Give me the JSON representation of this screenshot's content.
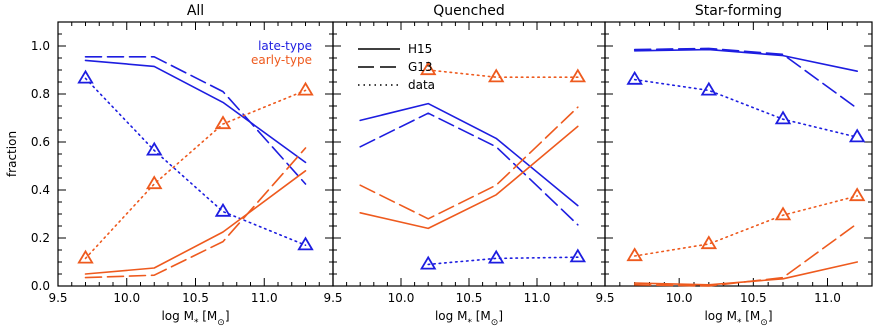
{
  "colors": {
    "late": "#1d1de0",
    "early": "#ee5a1e"
  },
  "legend": {
    "color_entries": [
      {
        "label": "late-type",
        "series_type": "late"
      },
      {
        "label": "early-type",
        "series_type": "early"
      }
    ],
    "style_entries": [
      {
        "label": "H15",
        "style": "solid"
      },
      {
        "label": "G13",
        "style": "dashed"
      },
      {
        "label": "data",
        "style": "dotted"
      }
    ]
  },
  "chart_data": [
    {
      "type": "line",
      "title": "All",
      "xlabel": "log M",
      "xlabel_sub": "*",
      "xlabel_unit_open": " [M",
      "xlabel_unit_sub": "⊙",
      "xlabel_unit_close": "]",
      "ylabel": "fraction",
      "xlim": [
        9.5,
        11.5
      ],
      "ylim": [
        0,
        1.1
      ],
      "xticks": [
        "9.5",
        "10.0",
        "10.5",
        "11.0"
      ],
      "yticks": [
        "0.0",
        "0.2",
        "0.4",
        "0.6",
        "0.8",
        "1.0"
      ],
      "series": [
        {
          "type": "late",
          "style": "solid",
          "x": [
            9.7,
            10.2,
            10.7,
            11.3
          ],
          "y": [
            0.94,
            0.915,
            0.765,
            0.515
          ]
        },
        {
          "type": "late",
          "style": "dashed",
          "x": [
            9.7,
            10.2,
            10.7,
            11.3
          ],
          "y": [
            0.955,
            0.955,
            0.81,
            0.425
          ]
        },
        {
          "type": "late",
          "style": "dotted",
          "markers": true,
          "x": [
            9.7,
            10.2,
            10.7,
            11.3
          ],
          "y": [
            0.865,
            0.565,
            0.31,
            0.17
          ]
        },
        {
          "type": "early",
          "style": "solid",
          "x": [
            9.7,
            10.2,
            10.7,
            11.3
          ],
          "y": [
            0.05,
            0.075,
            0.225,
            0.48
          ]
        },
        {
          "type": "early",
          "style": "dashed",
          "x": [
            9.7,
            10.2,
            10.7,
            11.3
          ],
          "y": [
            0.035,
            0.045,
            0.185,
            0.575
          ]
        },
        {
          "type": "early",
          "style": "dotted",
          "markers": true,
          "x": [
            9.7,
            10.2,
            10.7,
            11.3
          ],
          "y": [
            0.115,
            0.425,
            0.675,
            0.815
          ]
        }
      ]
    },
    {
      "type": "line",
      "title": "Quenched",
      "xlabel": "log M",
      "xlabel_sub": "*",
      "xlabel_unit_open": " [M",
      "xlabel_unit_sub": "⊙",
      "xlabel_unit_close": "]",
      "ylabel": "",
      "xlim": [
        9.5,
        11.5
      ],
      "ylim": [
        0,
        1.1
      ],
      "xticks": [
        "9.5",
        "10.0",
        "10.5",
        "11.0"
      ],
      "yticks": [],
      "series": [
        {
          "type": "late",
          "style": "solid",
          "x": [
            9.7,
            10.2,
            10.7,
            11.3
          ],
          "y": [
            0.69,
            0.76,
            0.615,
            0.335
          ]
        },
        {
          "type": "late",
          "style": "dashed",
          "x": [
            9.7,
            10.2,
            10.7,
            11.3
          ],
          "y": [
            0.58,
            0.72,
            0.58,
            0.255
          ]
        },
        {
          "type": "late",
          "style": "dotted",
          "markers": true,
          "x": [
            10.2,
            10.7,
            11.3
          ],
          "y": [
            0.09,
            0.115,
            0.12
          ]
        },
        {
          "type": "early",
          "style": "solid",
          "x": [
            9.7,
            10.2,
            10.7,
            11.3
          ],
          "y": [
            0.305,
            0.24,
            0.38,
            0.665
          ]
        },
        {
          "type": "early",
          "style": "dashed",
          "x": [
            9.7,
            10.2,
            10.7,
            11.3
          ],
          "y": [
            0.42,
            0.28,
            0.42,
            0.745
          ]
        },
        {
          "type": "early",
          "style": "dotted",
          "markers": true,
          "x": [
            10.2,
            10.7,
            11.3
          ],
          "y": [
            0.9,
            0.87,
            0.87
          ]
        }
      ]
    },
    {
      "type": "line",
      "title": "Star-forming",
      "xlabel": "log M",
      "xlabel_sub": "*",
      "xlabel_unit_open": " [M",
      "xlabel_unit_sub": "⊙",
      "xlabel_unit_close": "]",
      "ylabel": "",
      "xlim": [
        9.5,
        11.3
      ],
      "ylim": [
        0,
        1.1
      ],
      "xticks": [
        "9.5",
        "10.0",
        "10.5",
        "11.0"
      ],
      "yticks": [],
      "series": [
        {
          "type": "late",
          "style": "solid",
          "x": [
            9.7,
            10.2,
            10.7,
            11.2
          ],
          "y": [
            0.98,
            0.985,
            0.96,
            0.895
          ]
        },
        {
          "type": "late",
          "style": "dashed",
          "x": [
            9.7,
            10.2,
            10.7,
            11.2
          ],
          "y": [
            0.985,
            0.99,
            0.965,
            0.74
          ]
        },
        {
          "type": "late",
          "style": "dotted",
          "markers": true,
          "x": [
            9.7,
            10.2,
            10.7,
            11.2
          ],
          "y": [
            0.86,
            0.815,
            0.695,
            0.62
          ]
        },
        {
          "type": "early",
          "style": "solid",
          "x": [
            9.7,
            10.2,
            10.7,
            11.2
          ],
          "y": [
            0.012,
            0.005,
            0.03,
            0.1
          ]
        },
        {
          "type": "early",
          "style": "dashed",
          "x": [
            9.7,
            10.2,
            10.7,
            11.2
          ],
          "y": [
            0.005,
            0.0,
            0.035,
            0.26
          ]
        },
        {
          "type": "early",
          "style": "dotted",
          "markers": true,
          "x": [
            9.7,
            10.2,
            10.7,
            11.2
          ],
          "y": [
            0.125,
            0.175,
            0.295,
            0.375
          ]
        }
      ]
    }
  ]
}
